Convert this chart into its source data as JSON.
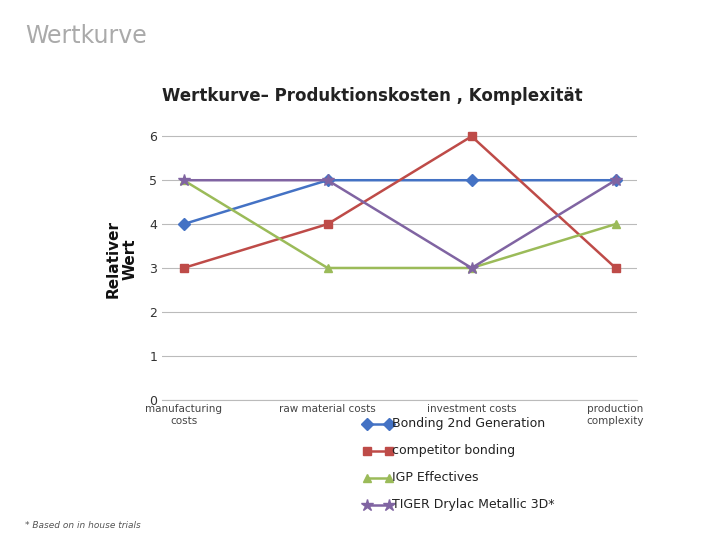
{
  "title_main": "Wertkurve",
  "title_chart": "Wertkurve– Produktionskosten , Komplexität",
  "ylabel": "Relativer\nWert",
  "categories": [
    "manufacturing\ncosts",
    "raw material costs",
    "investment costs",
    "production\ncomplexity"
  ],
  "series": [
    {
      "label": "Bonding 2nd Generation",
      "values": [
        4,
        5,
        5,
        5
      ],
      "color": "#4472C4",
      "marker": "D"
    },
    {
      "label": "competitor bonding",
      "values": [
        3,
        4,
        6,
        3
      ],
      "color": "#BE4B48",
      "marker": "s"
    },
    {
      "label": "IGP Effectives",
      "values": [
        5,
        3,
        3,
        4
      ],
      "color": "#9BBB59",
      "marker": "^"
    },
    {
      "label": "TIGER Drylac Metallic 3D*",
      "values": [
        5,
        5,
        3,
        5
      ],
      "color": "#8064A2",
      "marker": "*"
    }
  ],
  "ylim": [
    0,
    6.4
  ],
  "yticks": [
    0,
    1,
    2,
    3,
    4,
    5,
    6
  ],
  "footnote": "* Based on in house trials",
  "bg_color": "#FFFFFF",
  "grid_color": "#BBBBBB",
  "left_bar_color": "#8DC63F",
  "title_main_color": "#AAAAAA",
  "title_chart_color": "#222222"
}
